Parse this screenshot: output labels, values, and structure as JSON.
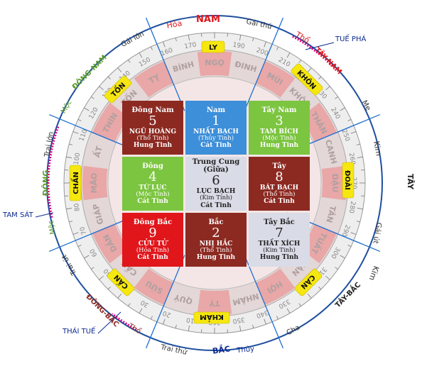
{
  "colors": {
    "red": "#e0161b",
    "dark_red": "#8c2a22",
    "blue": "#3d8fd9",
    "green": "#7cc540",
    "light": "#d9dbe6",
    "navy": "#0b2a8f",
    "magenta": "#e6007e",
    "olive": "#5a9a2a",
    "yellow": "#f5e70f"
  },
  "cells": [
    {
      "dir": "Đông Nam",
      "num": "5",
      "star": "NGŨ HOÀNG",
      "elem": "(Thổ Tinh)",
      "luck": "Hung Tinh",
      "color": "dark_red"
    },
    {
      "dir": "Nam",
      "num": "1",
      "star": "NHẤT BẠCH",
      "elem": "(Thủy Tinh)",
      "luck": "Cát Tinh",
      "color": "blue"
    },
    {
      "dir": "Tây Nam",
      "num": "3",
      "star": "TAM BÍCH",
      "elem": "(Mộc Tinh)",
      "luck": "Hung Tinh",
      "color": "green"
    },
    {
      "dir": "Đông",
      "num": "4",
      "star": "TỨ LỤC",
      "elem": "(Mộc Tinh)",
      "luck": "Cát Tinh",
      "color": "green"
    },
    {
      "dir": "Trung Cung (Giữa)",
      "num": "6",
      "star": "LỤC BẠCH",
      "elem": "(Kim Tinh)",
      "luck": "Cát Tinh",
      "color": "light"
    },
    {
      "dir": "Tây",
      "num": "8",
      "star": "BÁT BẠCH",
      "elem": "(Thổ Tinh)",
      "luck": "Cát Tinh",
      "color": "dark_red"
    },
    {
      "dir": "Đông Bắc",
      "num": "9",
      "star": "CỬU TỬ",
      "elem": "(Hỏa Tinh)",
      "luck": "Cát Tinh",
      "color": "red"
    },
    {
      "dir": "Bắc",
      "num": "2",
      "star": "NHỊ HẮC",
      "elem": "(Thổ Tinh)",
      "luck": "Hung Tinh",
      "color": "dark_red"
    },
    {
      "dir": "Tây Bắc",
      "num": "7",
      "star": "THẤT XÍCH",
      "elem": "(Kim Tinh)",
      "luck": "Hung Tinh",
      "color": "light"
    }
  ],
  "directions": {
    "nam": "NAM",
    "bac": "BẮC",
    "tay": "TÂY",
    "dong": "ĐÔNG",
    "dong_nam": "ĐÔNG-NAM",
    "tay_nam": "TÂY-NAM",
    "tay_bac": "TÂY-BẮC",
    "dong_bac": "ĐÔNG-BẮC"
  },
  "trigrams": {
    "ly": "LY",
    "khon": "KHÔN",
    "doai": "ĐOÀI",
    "can_nw": "CÀN",
    "kham": "KHẢM",
    "can_ne": "CẤN",
    "chan": "CHẤN",
    "ton": "TỐN"
  },
  "elements": {
    "hoa": "Hỏa",
    "tho_sw": "Thổ",
    "me": "Mẹ",
    "kim_w": "Kim",
    "kim_nw": "Kim",
    "thuy": "Thủy",
    "tho_ne": "Thổ",
    "moc_e": "Mộc",
    "moc_se": "Mộc"
  },
  "family": {
    "gai_thu_s": "Gái thứ",
    "gai_lon": "Gái lớn",
    "trai_lon": "Trai lớn",
    "gai_ut": "Gái út",
    "trai_ut": "Trai út",
    "cha": "Cha",
    "trai_thu": "Trai thứ"
  },
  "annotations": {
    "tue_pha": "TUẾ PHÁ",
    "tam_sat": "TAM SÁT",
    "thai_tue": "THÁI TUẾ"
  },
  "dial_numbers": [
    "170",
    "180",
    "190",
    "160",
    "150",
    "200",
    "210",
    "220",
    "230",
    "240",
    "250",
    "260",
    "270",
    "280",
    "290",
    "300",
    "310",
    "320",
    "330",
    "340",
    "350",
    "360",
    "10",
    "20",
    "30",
    "40",
    "50",
    "60",
    "70",
    "80",
    "90",
    "100",
    "110",
    "120",
    "130",
    "140"
  ],
  "ring_chars": [
    "BÍNH",
    "NGỌ",
    "ĐINH",
    "MÙI",
    "KHÔN",
    "THÂN",
    "CANH",
    "DẬU",
    "TÂN",
    "TUẤT",
    "CÀN",
    "HỢI",
    "NHÂM",
    "TÝ",
    "QUÝ",
    "SỬU",
    "CẤN",
    "DẦN",
    "GIÁP",
    "MÃO",
    "ẤT",
    "THÌN",
    "TỐN",
    "TỴ"
  ]
}
